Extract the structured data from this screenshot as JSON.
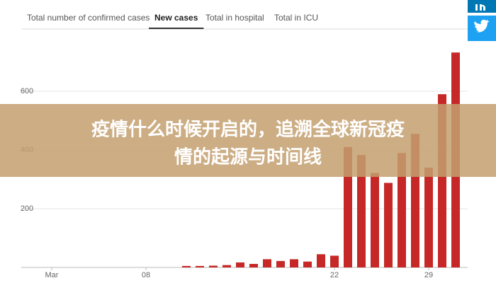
{
  "tabs": [
    "Total number of confirmed cases",
    "New cases",
    "Total in hospital",
    "Total in ICU"
  ],
  "active_tab": 1,
  "banner": {
    "lines": [
      "疫情什么时候开启的，追溯全球新冠疫",
      "情的起源与时间线"
    ]
  },
  "chart_data": {
    "type": "bar",
    "categories": [
      "Mar",
      null,
      null,
      null,
      null,
      null,
      null,
      "08",
      null,
      null,
      null,
      null,
      null,
      null,
      null,
      null,
      null,
      null,
      null,
      null,
      null,
      "22",
      null,
      null,
      null,
      null,
      null,
      null,
      "29",
      null,
      null
    ],
    "values": [
      0,
      0,
      0,
      0,
      0,
      0,
      0,
      0,
      0,
      0,
      5,
      5,
      6,
      8,
      17,
      12,
      28,
      22,
      28,
      20,
      45,
      40,
      410,
      383,
      322,
      288,
      390,
      455,
      340,
      590,
      732
    ],
    "color": "#c62828",
    "ylim": [
      0,
      800
    ],
    "yticks": [
      200,
      400,
      600
    ],
    "grid": true
  }
}
